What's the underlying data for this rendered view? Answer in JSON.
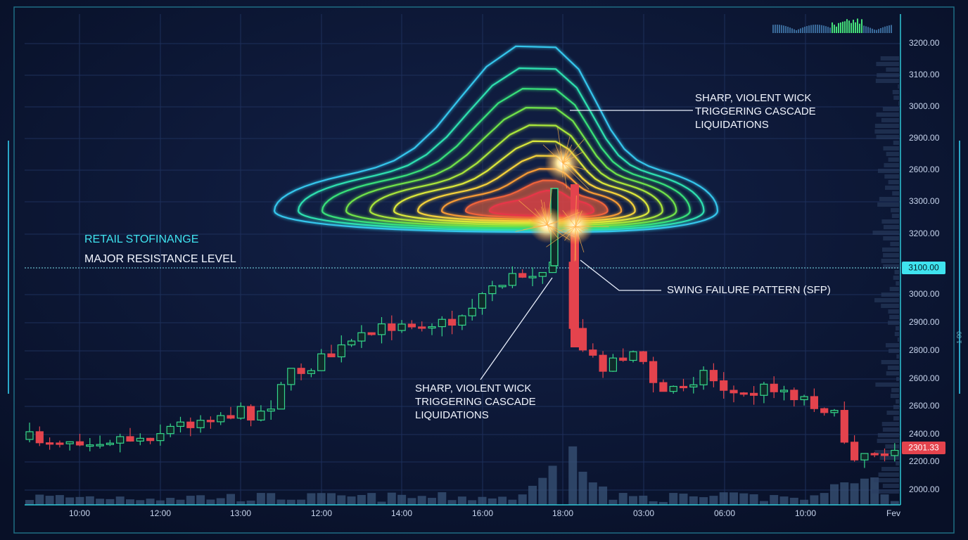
{
  "axis": {
    "y_labels": [
      "3200.00",
      "3100.00",
      "3000.00",
      "2900.00",
      "2600.00",
      "3300.00",
      "3200.00",
      "3000.00",
      "2900.00",
      "2800.00",
      "2600.00",
      "2600.00",
      "2400.00",
      "2200.00",
      "2000.00"
    ],
    "x_labels": [
      "10:00",
      "12:00",
      "13:00",
      "12:00",
      "14:00",
      "16:00",
      "18:00",
      "03:00",
      "06:00",
      "10:00",
      "Fev"
    ],
    "side_labels": [
      "1 00"
    ]
  },
  "price_tags": {
    "resistance": "3100.00",
    "current": "2301.33"
  },
  "levels": {
    "dashed_label": "RETAIL STOFINANGE",
    "dotted_label": "MAJOR RESISTANCE LEVEL"
  },
  "annotations": [
    {
      "lines": [
        "SHARP, VIOLENT WICK",
        "TRIGGERING CASCADE",
        "LIQUIDATIONS"
      ]
    },
    {
      "lines": [
        "SWING FAILURE PATTERN (SFP)"
      ]
    },
    {
      "lines": [
        "SHARP, VIOLENT WICK",
        "TRIGGERING CASCADE",
        "LIQUIDATIONS"
      ]
    }
  ]
}
